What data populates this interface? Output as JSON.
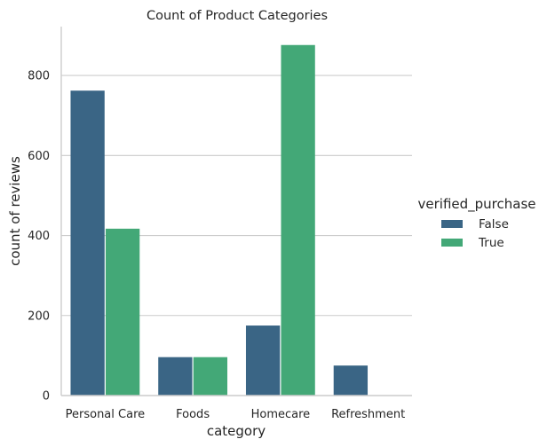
{
  "chart_data": {
    "type": "bar",
    "title": "Count of Product Categories",
    "xlabel": "category",
    "ylabel": "count of reviews",
    "categories": [
      "Personal Care",
      "Foods",
      "Homecare",
      "Refreshment"
    ],
    "series": [
      {
        "name": "False",
        "values": [
          762,
          96,
          175,
          75
        ],
        "color": "#3a6585"
      },
      {
        "name": "True",
        "values": [
          417,
          96,
          876,
          0
        ],
        "color": "#43a877"
      }
    ],
    "ylim": [
      0,
      922
    ],
    "yticks": [
      0,
      200,
      400,
      600,
      800
    ],
    "grid": "y-axis on",
    "legend": {
      "title": "verified_purchase",
      "placement": "right"
    }
  }
}
